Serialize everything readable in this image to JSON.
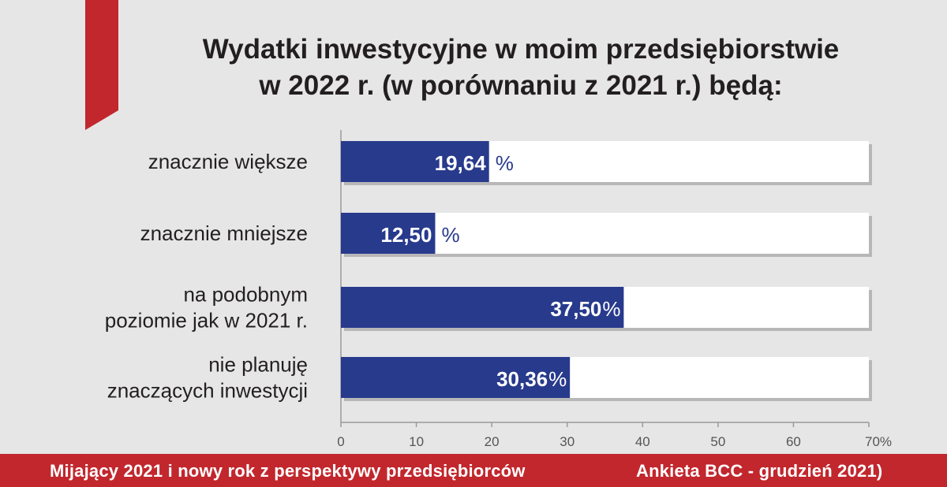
{
  "colors": {
    "bar": "#283a8c",
    "track": "#ffffff",
    "accent": "#c1272d",
    "background": "#e6e6e7",
    "text": "#231f20"
  },
  "title": [
    "Wydatki inwestycyjne w moim przedsiębiorstwie",
    "w 2022 r. (w porównaniu z 2021 r.) będą:"
  ],
  "chart_data": {
    "type": "bar",
    "orientation": "horizontal",
    "categories": [
      [
        "znacznie większe"
      ],
      [
        "znacznie mniejsze"
      ],
      [
        "na podobnym",
        "poziomie jak w 2021 r."
      ],
      [
        "nie planuję",
        "znaczących inwestycji"
      ]
    ],
    "values": [
      19.64,
      12.5,
      37.5,
      30.36
    ],
    "value_labels": [
      "19,64",
      "12,50",
      "37,50",
      "30,36"
    ],
    "value_suffix": "%",
    "xlim": [
      0,
      70
    ],
    "ticks": [
      0,
      10,
      20,
      30,
      40,
      50,
      60,
      70
    ],
    "tick_labels": [
      "0",
      "10",
      "20",
      "30",
      "40",
      "50",
      "60",
      "70%"
    ],
    "xlabel": "",
    "ylabel": "",
    "grid": false,
    "legend": "none"
  },
  "footer": {
    "left": "Mijający 2021 i nowy rok z perspektywy przedsiębiorców",
    "right": "Ankieta BCC - grudzień 2021)"
  }
}
